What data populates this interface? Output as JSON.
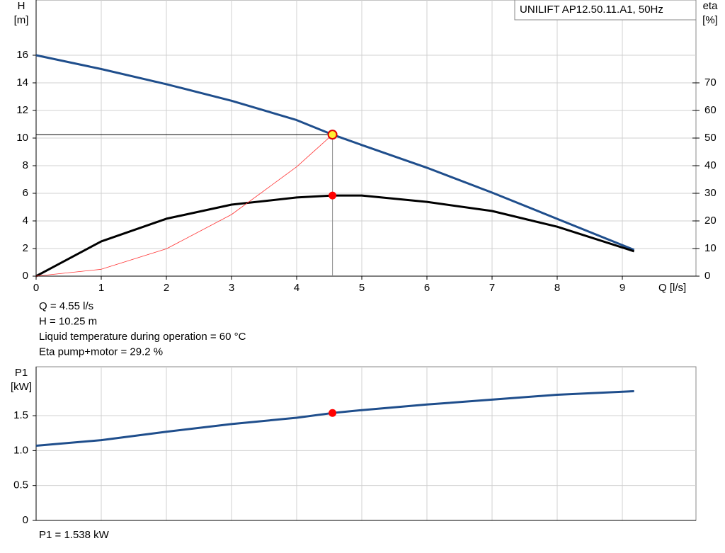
{
  "chart_data": [
    {
      "type": "line",
      "title": "UNILIFT AP12.50.11.A1, 50Hz",
      "ylabel": "H",
      "yunit": "[m]",
      "y2label": "eta",
      "y2unit": "[%]",
      "xlabel": "Q [l/s]",
      "xlim": [
        0,
        10
      ],
      "xticks": [
        0,
        1,
        2,
        3,
        4,
        5,
        6,
        7,
        8,
        9
      ],
      "ylim": [
        0,
        20
      ],
      "yticks": [
        0,
        2,
        4,
        6,
        8,
        10,
        12,
        14,
        16
      ],
      "y2lim": [
        0,
        100
      ],
      "y2ticks": [
        0,
        10,
        20,
        30,
        40,
        50,
        60,
        70
      ],
      "grid": true,
      "series": [
        {
          "color": "#1f4e8c",
          "width": 3,
          "axis": "y",
          "x": [
            0,
            1,
            2,
            3,
            4,
            4.55,
            5,
            6,
            7,
            8,
            9.18
          ],
          "values": [
            16,
            15,
            13.9,
            12.7,
            11.3,
            10.25,
            9.5,
            7.85,
            6.05,
            4.15,
            1.9
          ]
        },
        {
          "color": "#000000",
          "width": 3,
          "axis": "y2",
          "x": [
            0,
            1,
            2,
            3,
            4,
            4.55,
            5,
            6,
            7,
            8,
            9.18
          ],
          "values": [
            0,
            12.6,
            20.8,
            25.9,
            28.5,
            29.2,
            29.2,
            26.9,
            23.6,
            17.9,
            9
          ]
        },
        {
          "color": "#ff3333",
          "width": 0.8,
          "axis": "y",
          "x": [
            0,
            1,
            2,
            3,
            4,
            4.55
          ],
          "values": [
            0,
            0.5,
            1.98,
            4.46,
            7.92,
            10.25
          ]
        }
      ],
      "duty_point": {
        "x": 4.55,
        "y": 10.25,
        "y2": 29.2
      },
      "notes": [
        "Q = 4.55 l/s",
        "H = 10.25 m",
        "Liquid temperature during operation = 60 °C",
        "Eta pump+motor = 29.2 %"
      ]
    },
    {
      "type": "line",
      "ylabel": "P1",
      "yunit": "[kW]",
      "xlim": [
        0,
        10
      ],
      "ylim": [
        0,
        2.2
      ],
      "yticks": [
        0,
        0.5,
        {
          "value": 1,
          "label": "1.0"
        },
        1.5
      ],
      "grid": true,
      "series": [
        {
          "color": "#1f4e8c",
          "width": 3,
          "axis": "y",
          "x": [
            0,
            1,
            2,
            3,
            4,
            4.55,
            5,
            6,
            7,
            8,
            9.18
          ],
          "values": [
            1.07,
            1.15,
            1.27,
            1.38,
            1.47,
            1.538,
            1.58,
            1.66,
            1.73,
            1.8,
            1.85
          ]
        }
      ],
      "duty_point": {
        "x": 4.55,
        "y": 1.538
      },
      "notes": [
        "P1 = 1.538 kW"
      ]
    }
  ]
}
